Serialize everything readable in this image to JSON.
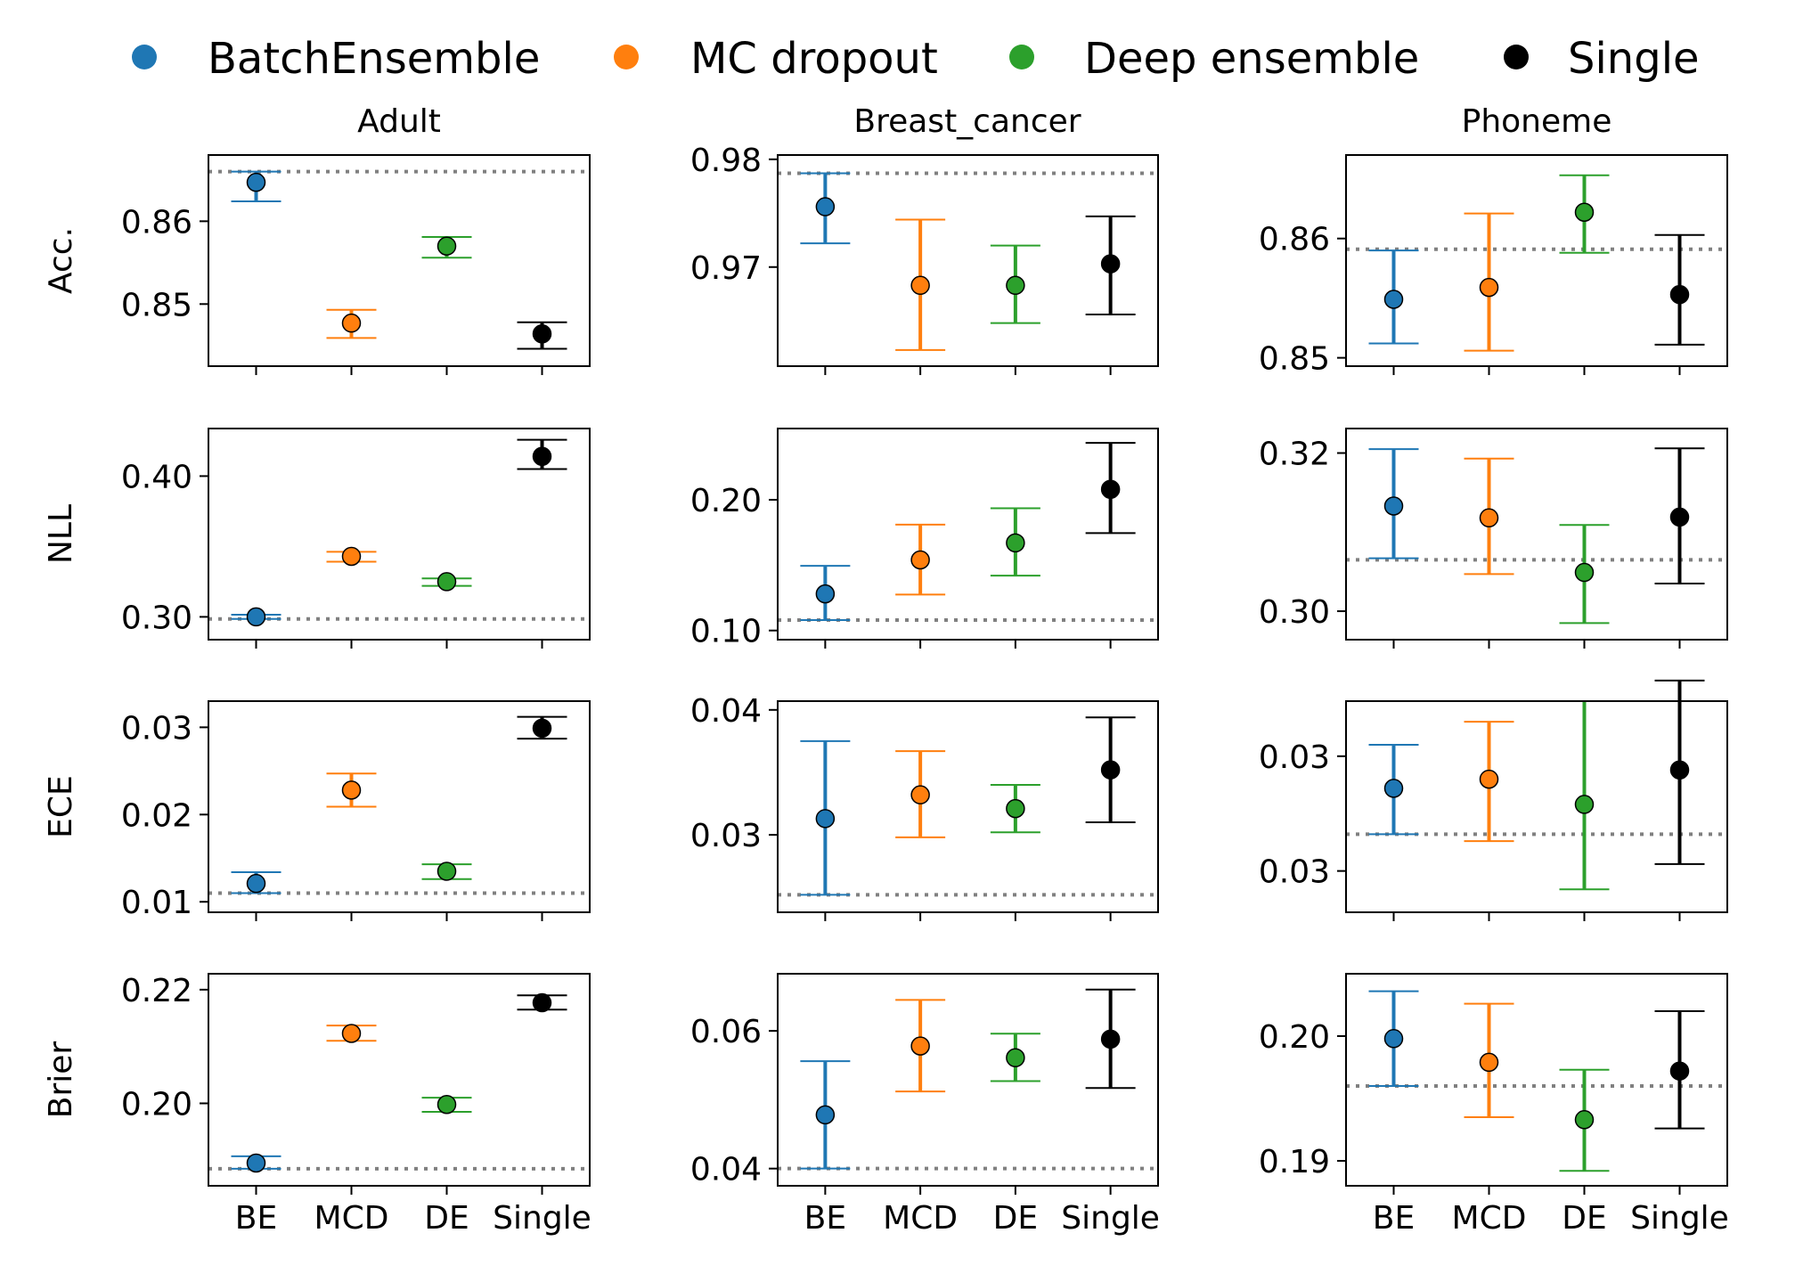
{
  "figure": {
    "legend": [
      {
        "label": "BatchEnsemble",
        "color": "#1f77b4"
      },
      {
        "label": "MC dropout",
        "color": "#ff7f0e"
      },
      {
        "label": "Deep ensemble",
        "color": "#2ca02c"
      },
      {
        "label": "Single",
        "color": "#000000"
      }
    ],
    "columns": [
      "Adult",
      "Breast_cancer",
      "Phoneme"
    ],
    "rows": [
      "Acc.",
      "NLL",
      "ECE",
      "Brier"
    ],
    "categories": [
      "BE",
      "MCD",
      "DE",
      "Single"
    ],
    "reference_line_color": "#808080"
  },
  "chart_data": [
    {
      "type": "scatter",
      "title": "Adult",
      "ylabel": "Acc.",
      "categories": [
        "BE",
        "MCD",
        "DE",
        "Single"
      ],
      "ylim": [
        0.8425,
        0.868
      ],
      "yticks": [
        0.85,
        0.86
      ],
      "ytick_labels": [
        "0.85",
        "0.86"
      ],
      "reference": 0.866,
      "series": [
        {
          "name": "BatchEnsemble",
          "value": 0.8647,
          "lower": 0.8624,
          "upper": 0.866
        },
        {
          "name": "MC dropout",
          "value": 0.8477,
          "lower": 0.8459,
          "upper": 0.8493
        },
        {
          "name": "Deep ensemble",
          "value": 0.857,
          "lower": 0.8556,
          "upper": 0.8581
        },
        {
          "name": "Single",
          "value": 0.8464,
          "lower": 0.8446,
          "upper": 0.8478
        }
      ]
    },
    {
      "type": "scatter",
      "title": "Breast_cancer",
      "ylabel": "",
      "categories": [
        "BE",
        "MCD",
        "DE",
        "Single"
      ],
      "ylim": [
        0.9608,
        0.9804
      ],
      "yticks": [
        0.97,
        0.98
      ],
      "ytick_labels": [
        "0.97",
        "0.98"
      ],
      "reference": 0.9787,
      "series": [
        {
          "name": "BatchEnsemble",
          "value": 0.9756,
          "lower": 0.9722,
          "upper": 0.9787
        },
        {
          "name": "MC dropout",
          "value": 0.9683,
          "lower": 0.9623,
          "upper": 0.9744
        },
        {
          "name": "Deep ensemble",
          "value": 0.9683,
          "lower": 0.9648,
          "upper": 0.972
        },
        {
          "name": "Single",
          "value": 0.9703,
          "lower": 0.9656,
          "upper": 0.9747
        }
      ]
    },
    {
      "type": "scatter",
      "title": "Phoneme",
      "ylabel": "",
      "categories": [
        "BE",
        "MCD",
        "DE",
        "Single"
      ],
      "ylim": [
        0.8493,
        0.867
      ],
      "yticks": [
        0.85,
        0.86
      ],
      "ytick_labels": [
        "0.85",
        "0.86"
      ],
      "reference": 0.8591,
      "series": [
        {
          "name": "BatchEnsemble",
          "value": 0.8549,
          "lower": 0.8512,
          "upper": 0.859
        },
        {
          "name": "MC dropout",
          "value": 0.8559,
          "lower": 0.8506,
          "upper": 0.8621
        },
        {
          "name": "Deep ensemble",
          "value": 0.8622,
          "lower": 0.8588,
          "upper": 0.8653
        },
        {
          "name": "Single",
          "value": 0.8553,
          "lower": 0.8511,
          "upper": 0.8603
        }
      ]
    },
    {
      "type": "scatter",
      "title": "",
      "ylabel": "NLL",
      "categories": [
        "BE",
        "MCD",
        "DE",
        "Single"
      ],
      "ylim": [
        0.2838,
        0.4338
      ],
      "yticks": [
        0.3,
        0.4
      ],
      "ytick_labels": [
        "0.30",
        "0.40"
      ],
      "reference": 0.2985,
      "series": [
        {
          "name": "BatchEnsemble",
          "value": 0.3,
          "lower": 0.2985,
          "upper": 0.3015
        },
        {
          "name": "MC dropout",
          "value": 0.343,
          "lower": 0.3392,
          "upper": 0.3462
        },
        {
          "name": "Deep ensemble",
          "value": 0.325,
          "lower": 0.322,
          "upper": 0.3273
        },
        {
          "name": "Single",
          "value": 0.414,
          "lower": 0.405,
          "upper": 0.4258
        }
      ]
    },
    {
      "type": "scatter",
      "title": "",
      "ylabel": "",
      "categories": [
        "BE",
        "MCD",
        "DE",
        "Single"
      ],
      "ylim": [
        0.093,
        0.2545
      ],
      "yticks": [
        0.1,
        0.2
      ],
      "ytick_labels": [
        "0.10",
        "0.20"
      ],
      "reference": 0.108,
      "series": [
        {
          "name": "BatchEnsemble",
          "value": 0.128,
          "lower": 0.108,
          "upper": 0.1495
        },
        {
          "name": "MC dropout",
          "value": 0.154,
          "lower": 0.1275,
          "upper": 0.181
        },
        {
          "name": "Deep ensemble",
          "value": 0.167,
          "lower": 0.142,
          "upper": 0.1935
        },
        {
          "name": "Single",
          "value": 0.208,
          "lower": 0.1745,
          "upper": 0.2435
        }
      ]
    },
    {
      "type": "scatter",
      "title": "",
      "ylabel": "",
      "categories": [
        "BE",
        "MCD",
        "DE",
        "Single"
      ],
      "ylim": [
        0.2964,
        0.3231
      ],
      "yticks": [
        0.3,
        0.32
      ],
      "ytick_labels": [
        "0.30",
        "0.32"
      ],
      "reference": 0.3065,
      "series": [
        {
          "name": "BatchEnsemble",
          "value": 0.3133,
          "lower": 0.3067,
          "upper": 0.3205
        },
        {
          "name": "MC dropout",
          "value": 0.3118,
          "lower": 0.3047,
          "upper": 0.3193
        },
        {
          "name": "Deep ensemble",
          "value": 0.3049,
          "lower": 0.2985,
          "upper": 0.3109
        },
        {
          "name": "Single",
          "value": 0.3119,
          "lower": 0.3035,
          "upper": 0.3206
        }
      ]
    },
    {
      "type": "scatter",
      "title": "",
      "ylabel": "ECE",
      "categories": [
        "BE",
        "MCD",
        "DE",
        "Single"
      ],
      "ylim": [
        0.0088,
        0.033
      ],
      "yticks": [
        0.01,
        0.02,
        0.03
      ],
      "ytick_labels": [
        "0.01",
        "0.02",
        "0.03"
      ],
      "reference": 0.011,
      "series": [
        {
          "name": "BatchEnsemble",
          "value": 0.0121,
          "lower": 0.011,
          "upper": 0.0134
        },
        {
          "name": "MC dropout",
          "value": 0.0228,
          "lower": 0.0209,
          "upper": 0.0247
        },
        {
          "name": "Deep ensemble",
          "value": 0.0135,
          "lower": 0.0126,
          "upper": 0.0143
        },
        {
          "name": "Single",
          "value": 0.0299,
          "lower": 0.0287,
          "upper": 0.0312
        }
      ]
    },
    {
      "type": "scatter",
      "title": "",
      "ylabel": "",
      "categories": [
        "BE",
        "MCD",
        "DE",
        "Single"
      ],
      "ylim": [
        0.0238,
        0.0407
      ],
      "yticks": [
        0.03,
        0.04
      ],
      "ytick_labels": [
        "0.03",
        "0.04"
      ],
      "reference": 0.0252,
      "series": [
        {
          "name": "BatchEnsemble",
          "value": 0.0313,
          "lower": 0.0252,
          "upper": 0.0375
        },
        {
          "name": "MC dropout",
          "value": 0.0332,
          "lower": 0.0298,
          "upper": 0.0367
        },
        {
          "name": "Deep ensemble",
          "value": 0.0321,
          "lower": 0.0302,
          "upper": 0.034
        },
        {
          "name": "Single",
          "value": 0.0352,
          "lower": 0.031,
          "upper": 0.0394
        }
      ]
    },
    {
      "type": "scatter",
      "title": "",
      "ylabel": "",
      "categories": [
        "BE",
        "MCD",
        "DE",
        "Single"
      ],
      "ylim": [
        0.0252,
        0.0344
      ],
      "yticks": [
        0.027,
        0.032
      ],
      "ytick_labels": [
        "0.03",
        "0.03"
      ],
      "reference": 0.0286,
      "series": [
        {
          "name": "BatchEnsemble",
          "value": 0.0306,
          "lower": 0.0286,
          "upper": 0.0325
        },
        {
          "name": "MC dropout",
          "value": 0.031,
          "lower": 0.0283,
          "upper": 0.0335
        },
        {
          "name": "Deep ensemble",
          "value": 0.0299,
          "lower": 0.0262,
          "upper": 0.0344
        },
        {
          "name": "Single",
          "value": 0.0314,
          "lower": 0.0273,
          "upper": 0.0353
        }
      ]
    },
    {
      "type": "scatter",
      "title": "",
      "ylabel": "Brier",
      "categories": [
        "BE",
        "MCD",
        "DE",
        "Single"
      ],
      "ylim": [
        0.1855,
        0.2228
      ],
      "yticks": [
        0.2,
        0.22
      ],
      "ytick_labels": [
        "0.20",
        "0.22"
      ],
      "reference": 0.1885,
      "series": [
        {
          "name": "BatchEnsemble",
          "value": 0.1895,
          "lower": 0.1885,
          "upper": 0.1907
        },
        {
          "name": "MC dropout",
          "value": 0.2123,
          "lower": 0.211,
          "upper": 0.2137
        },
        {
          "name": "Deep ensemble",
          "value": 0.1998,
          "lower": 0.1985,
          "upper": 0.201
        },
        {
          "name": "Single",
          "value": 0.2177,
          "lower": 0.2165,
          "upper": 0.219
        }
      ]
    },
    {
      "type": "scatter",
      "title": "",
      "ylabel": "",
      "categories": [
        "BE",
        "MCD",
        "DE",
        "Single"
      ],
      "ylim": [
        0.0375,
        0.0683
      ],
      "yticks": [
        0.04,
        0.06
      ],
      "ytick_labels": [
        "0.04",
        "0.06"
      ],
      "reference": 0.04,
      "series": [
        {
          "name": "BatchEnsemble",
          "value": 0.0478,
          "lower": 0.04,
          "upper": 0.0556
        },
        {
          "name": "MC dropout",
          "value": 0.0578,
          "lower": 0.0512,
          "upper": 0.0645
        },
        {
          "name": "Deep ensemble",
          "value": 0.0561,
          "lower": 0.0527,
          "upper": 0.0596
        },
        {
          "name": "Single",
          "value": 0.0588,
          "lower": 0.0517,
          "upper": 0.066
        }
      ]
    },
    {
      "type": "scatter",
      "title": "",
      "ylabel": "",
      "categories": [
        "BE",
        "MCD",
        "DE",
        "Single"
      ],
      "ylim": [
        0.188,
        0.205
      ],
      "yticks": [
        0.19,
        0.2
      ],
      "ytick_labels": [
        "0.19",
        "0.20"
      ],
      "reference": 0.196,
      "series": [
        {
          "name": "BatchEnsemble",
          "value": 0.1998,
          "lower": 0.196,
          "upper": 0.2036
        },
        {
          "name": "MC dropout",
          "value": 0.1979,
          "lower": 0.1935,
          "upper": 0.2026
        },
        {
          "name": "Deep ensemble",
          "value": 0.1933,
          "lower": 0.1892,
          "upper": 0.1973
        },
        {
          "name": "Single",
          "value": 0.1972,
          "lower": 0.1926,
          "upper": 0.202
        }
      ]
    }
  ]
}
